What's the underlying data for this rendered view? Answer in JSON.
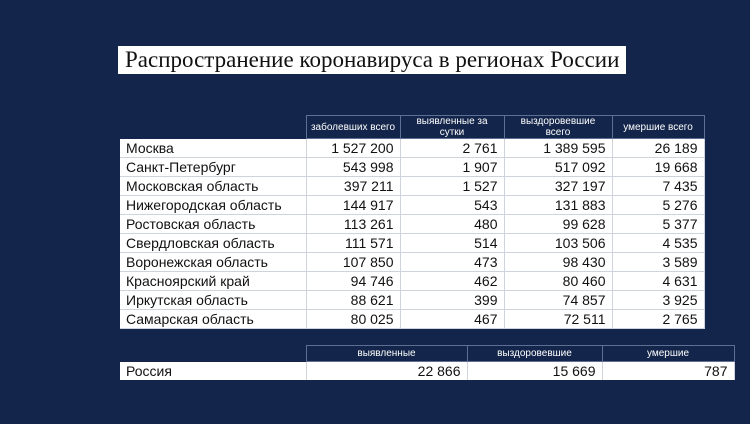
{
  "title": "Распространение коронавируса в регионах России",
  "regions_table": {
    "headers": [
      "заболевших всего",
      "выявленные за сутки",
      "выздоровевшие всего",
      "умершие всего"
    ],
    "rows": [
      {
        "name": "Москва",
        "values": [
          "1 527 200",
          "2 761",
          "1 389 595",
          "26 189"
        ]
      },
      {
        "name": "Санкт-Петербург",
        "values": [
          "543 998",
          "1 907",
          "517 092",
          "19 668"
        ]
      },
      {
        "name": "Московская область",
        "values": [
          "397 211",
          "1 527",
          "327 197",
          "7 435"
        ]
      },
      {
        "name": "Нижегородская область",
        "values": [
          "144 917",
          "543",
          "131 883",
          "5 276"
        ]
      },
      {
        "name": "Ростовская область",
        "values": [
          "113 261",
          "480",
          "99 628",
          "5 377"
        ]
      },
      {
        "name": "Свердловская область",
        "values": [
          "111 571",
          "514",
          "103 506",
          "4 535"
        ]
      },
      {
        "name": "Воронежская область",
        "values": [
          "107 850",
          "473",
          "98 430",
          "3 589"
        ]
      },
      {
        "name": "Красноярский край",
        "values": [
          "94 746",
          "462",
          "80 460",
          "4 631"
        ]
      },
      {
        "name": "Иркутская область",
        "values": [
          "88 621",
          "399",
          "74 857",
          "3 925"
        ]
      },
      {
        "name": "Самарская область",
        "values": [
          "80 025",
          "467",
          "72 511",
          "2 765"
        ]
      }
    ]
  },
  "russia_table": {
    "headers": [
      "выявленные",
      "выздоровевшие",
      "умершие"
    ],
    "row": {
      "name": "Россия",
      "values": [
        "22 866",
        "15 669",
        "787"
      ]
    }
  }
}
